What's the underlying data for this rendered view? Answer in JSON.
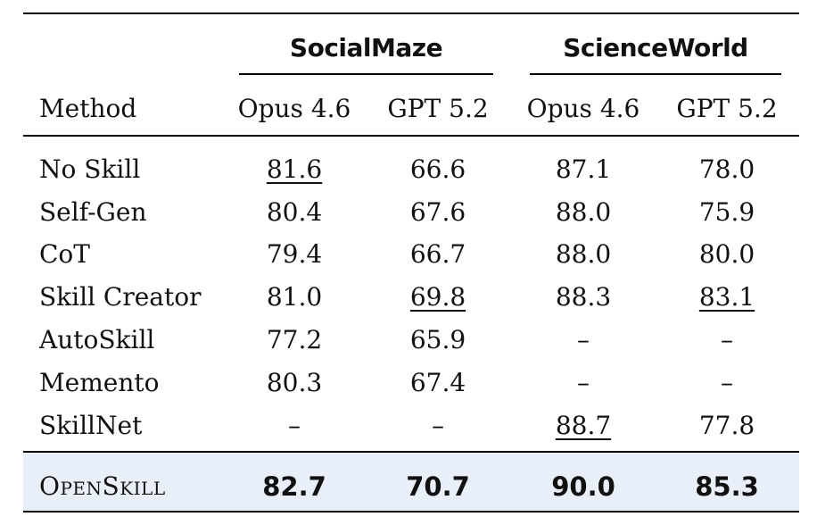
{
  "table": {
    "groups": [
      "SocialMaze",
      "ScienceWorld"
    ],
    "header": {
      "method": "Method",
      "models": [
        "Opus 4.6",
        "GPT 5.2",
        "Opus 4.6",
        "GPT 5.2"
      ]
    },
    "rows": [
      {
        "method": "No Skill",
        "values": [
          "81.6",
          "66.6",
          "87.1",
          "78.0"
        ],
        "underline": [
          true,
          false,
          false,
          false
        ]
      },
      {
        "method": "Self-Gen",
        "values": [
          "80.4",
          "67.6",
          "88.0",
          "75.9"
        ],
        "underline": [
          false,
          false,
          false,
          false
        ]
      },
      {
        "method": "CoT",
        "values": [
          "79.4",
          "66.7",
          "88.0",
          "80.0"
        ],
        "underline": [
          false,
          false,
          false,
          false
        ]
      },
      {
        "method": "Skill Creator",
        "values": [
          "81.0",
          "69.8",
          "88.3",
          "83.1"
        ],
        "underline": [
          false,
          true,
          false,
          true
        ]
      },
      {
        "method": "AutoSkill",
        "values": [
          "77.2",
          "65.9",
          "–",
          "–"
        ],
        "underline": [
          false,
          false,
          false,
          false
        ]
      },
      {
        "method": "Memento",
        "values": [
          "80.3",
          "67.4",
          "–",
          "–"
        ],
        "underline": [
          false,
          false,
          false,
          false
        ]
      },
      {
        "method": "SkillNet",
        "values": [
          "–",
          "–",
          "88.7",
          "77.8"
        ],
        "underline": [
          false,
          false,
          true,
          false
        ]
      }
    ],
    "final_row": {
      "method": "OpenSkill",
      "values": [
        "82.7",
        "70.7",
        "90.0",
        "85.3"
      ],
      "highlight_color": "#e9eff8"
    }
  }
}
